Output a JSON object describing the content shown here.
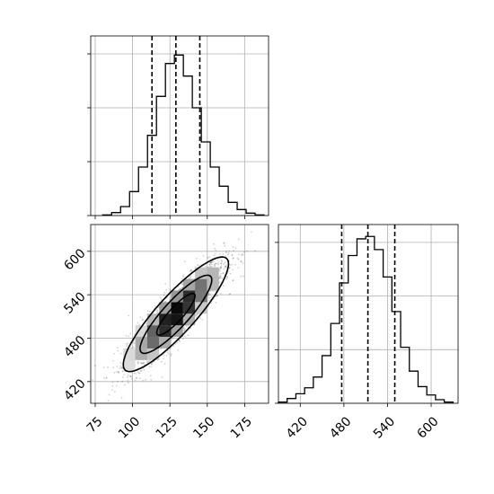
{
  "chart_data": [
    {
      "panel": "marginal-x",
      "type": "histogram",
      "title": "",
      "xlabel": "",
      "ylabel": "",
      "xlim": [
        72,
        191
      ],
      "ylim": [
        0,
        0.03
      ],
      "bins": [
        {
          "lo": 80,
          "hi": 86,
          "count": 0.0001
        },
        {
          "lo": 86,
          "hi": 92,
          "count": 0.0005
        },
        {
          "lo": 92,
          "hi": 98,
          "count": 0.0015
        },
        {
          "lo": 98,
          "hi": 104,
          "count": 0.004
        },
        {
          "lo": 104,
          "hi": 110,
          "count": 0.0081
        },
        {
          "lo": 110,
          "hi": 116,
          "count": 0.0134
        },
        {
          "lo": 116,
          "hi": 122,
          "count": 0.0199
        },
        {
          "lo": 122,
          "hi": 128,
          "count": 0.0254
        },
        {
          "lo": 128,
          "hi": 134,
          "count": 0.0268
        },
        {
          "lo": 134,
          "hi": 140,
          "count": 0.0233
        },
        {
          "lo": 140,
          "hi": 146,
          "count": 0.018
        },
        {
          "lo": 146,
          "hi": 152,
          "count": 0.0123
        },
        {
          "lo": 152,
          "hi": 158,
          "count": 0.0081
        },
        {
          "lo": 158,
          "hi": 164,
          "count": 0.0049
        },
        {
          "lo": 164,
          "hi": 170,
          "count": 0.0022
        },
        {
          "lo": 170,
          "hi": 176,
          "count": 0.001
        },
        {
          "lo": 176,
          "hi": 182,
          "count": 0.0004
        },
        {
          "lo": 182,
          "hi": 188,
          "count": 0.0001
        }
      ],
      "quantiles": [
        113,
        129,
        145
      ],
      "yticks": [
        0,
        0.009,
        0.018,
        0.027
      ],
      "grid": true
    },
    {
      "panel": "marginal-y",
      "type": "histogram",
      "title": "",
      "xlabel": "",
      "ylabel": "",
      "xlim": [
        390,
        637
      ],
      "ylim": [
        0,
        0.015
      ],
      "bins": [
        {
          "lo": 390,
          "hi": 402,
          "count": 0.0001
        },
        {
          "lo": 402,
          "hi": 414,
          "count": 0.0004
        },
        {
          "lo": 414,
          "hi": 426,
          "count": 0.0008
        },
        {
          "lo": 426,
          "hi": 438,
          "count": 0.0013
        },
        {
          "lo": 438,
          "hi": 450,
          "count": 0.0022
        },
        {
          "lo": 450,
          "hi": 462,
          "count": 0.004
        },
        {
          "lo": 462,
          "hi": 474,
          "count": 0.0067
        },
        {
          "lo": 474,
          "hi": 486,
          "count": 0.0101
        },
        {
          "lo": 486,
          "hi": 498,
          "count": 0.0124
        },
        {
          "lo": 498,
          "hi": 510,
          "count": 0.0138
        },
        {
          "lo": 510,
          "hi": 522,
          "count": 0.014
        },
        {
          "lo": 522,
          "hi": 534,
          "count": 0.0129
        },
        {
          "lo": 534,
          "hi": 546,
          "count": 0.0106
        },
        {
          "lo": 546,
          "hi": 558,
          "count": 0.0077
        },
        {
          "lo": 558,
          "hi": 570,
          "count": 0.0047
        },
        {
          "lo": 570,
          "hi": 582,
          "count": 0.0027
        },
        {
          "lo": 582,
          "hi": 594,
          "count": 0.0014
        },
        {
          "lo": 594,
          "hi": 606,
          "count": 0.0007
        },
        {
          "lo": 606,
          "hi": 618,
          "count": 0.0003
        },
        {
          "lo": 618,
          "hi": 630,
          "count": 0.0001
        }
      ],
      "quantiles": [
        477,
        513,
        550
      ],
      "xticks": [
        420,
        480,
        540,
        600
      ],
      "yticks": [
        0,
        0.0045,
        0.009,
        0.0135
      ],
      "grid": true
    },
    {
      "panel": "joint",
      "type": "heatmap",
      "title": "",
      "xlabel": "",
      "ylabel": "",
      "xlim": [
        72,
        191
      ],
      "ylim": [
        390,
        637
      ],
      "xticks": [
        75,
        100,
        125,
        150,
        175
      ],
      "yticks": [
        420,
        480,
        540,
        600
      ],
      "grid": true,
      "correlation": 0.88,
      "mean": [
        129,
        513
      ],
      "std": [
        16,
        36
      ],
      "sample_points": 2500,
      "contour_levels": [
        "outer",
        "middle",
        "inner"
      ],
      "colors": {
        "line": "#000000",
        "grid": "#b0b0b0",
        "points": "#000000"
      }
    }
  ]
}
